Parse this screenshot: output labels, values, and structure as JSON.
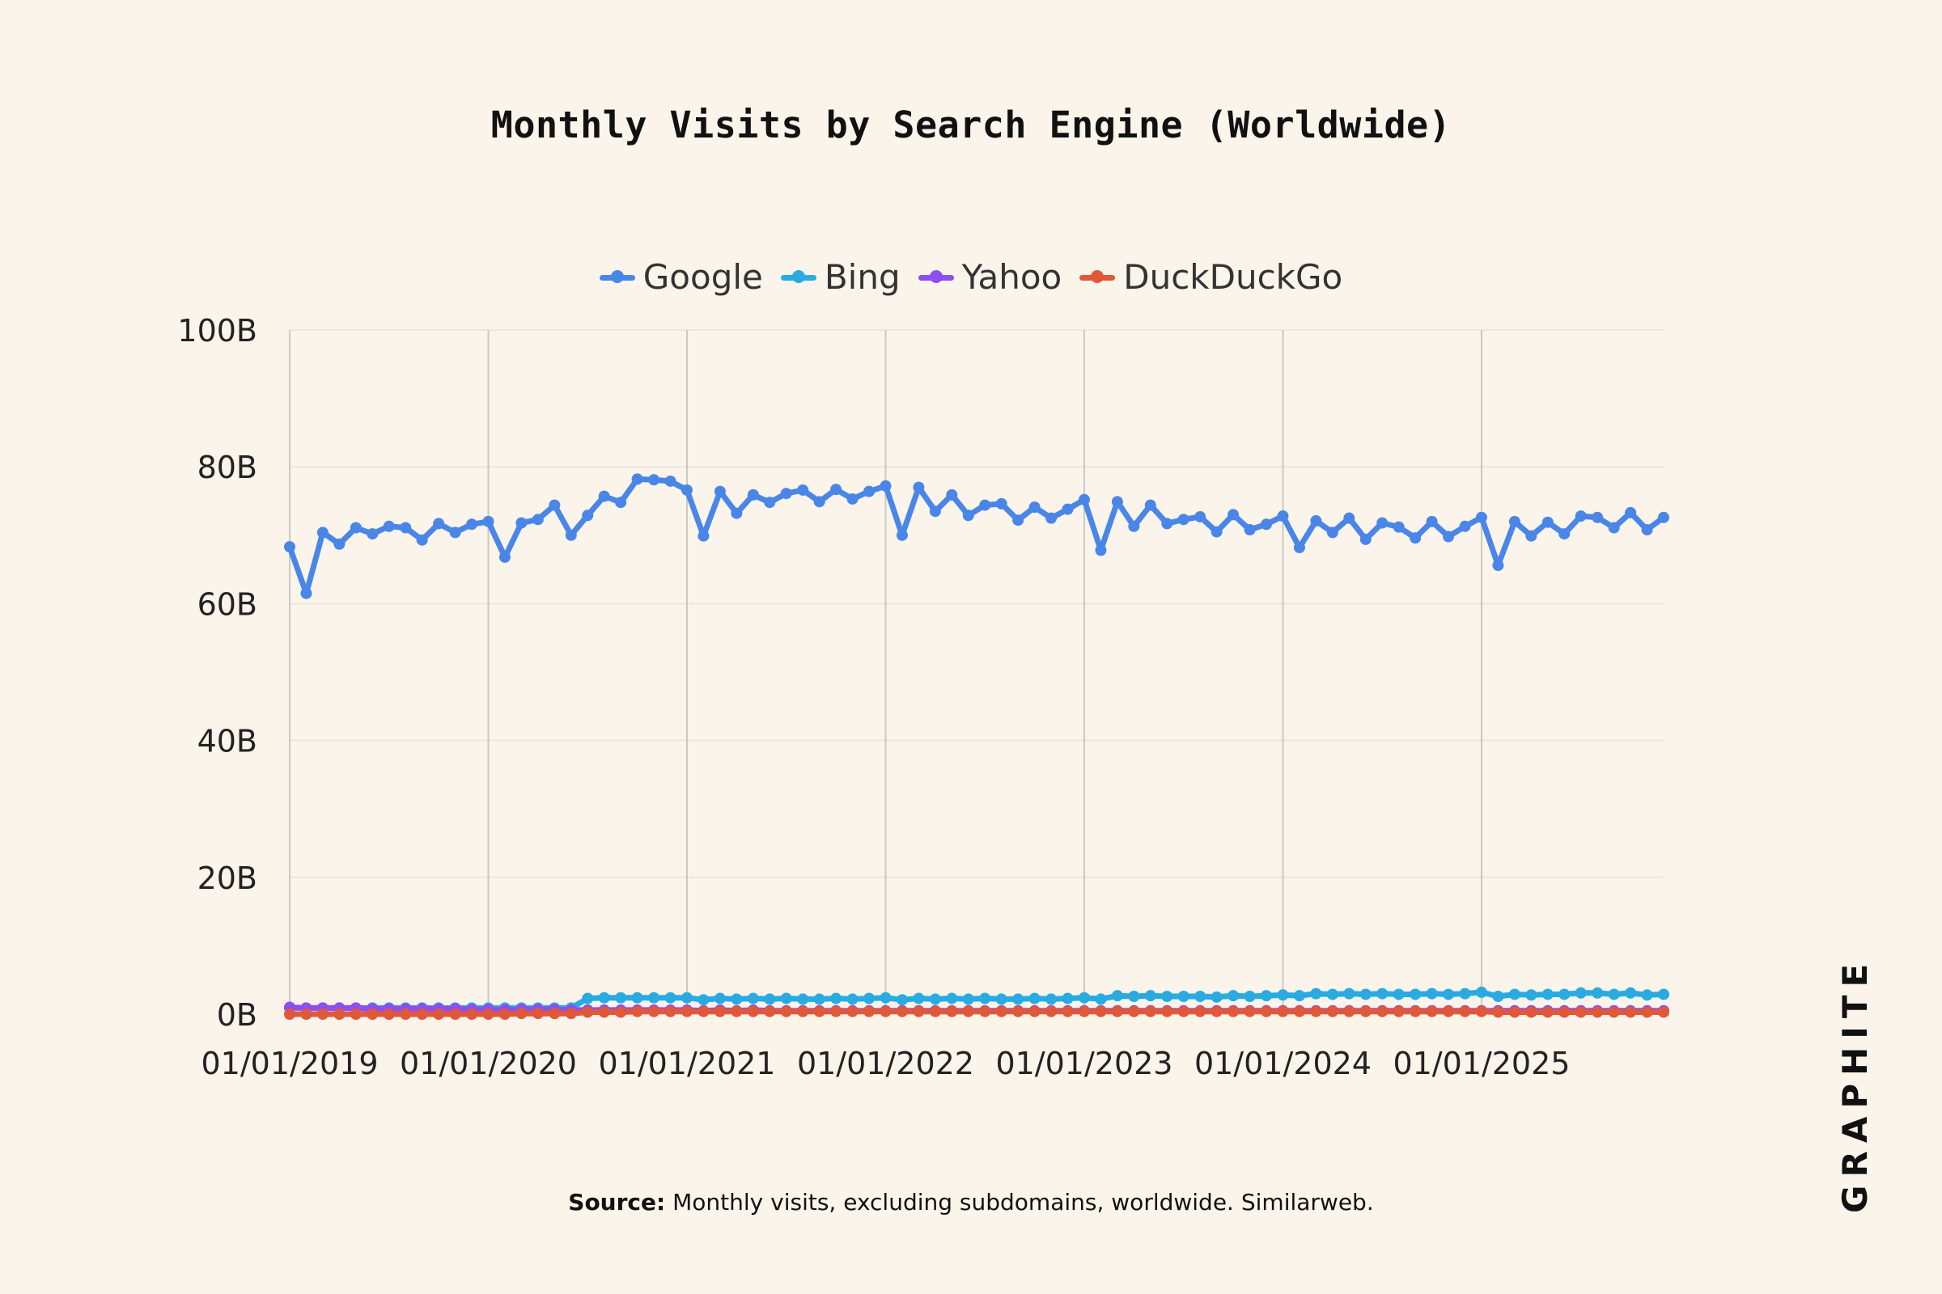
{
  "title": "Monthly Visits by Search Engine (Worldwide)",
  "source": {
    "label": "Source:",
    "text": "Monthly visits, excluding subdomains, worldwide. Similarweb."
  },
  "brand": "GRAPHITE",
  "chart_data": {
    "type": "line",
    "title": "Monthly Visits by Search Engine (Worldwide)",
    "xlabel": "",
    "ylabel": "",
    "ylim": [
      0,
      100
    ],
    "yticks": [
      0,
      20,
      40,
      60,
      80,
      100
    ],
    "ytick_labels": [
      "0B",
      "20B",
      "40B",
      "60B",
      "80B",
      "100B"
    ],
    "xtick_labels": [
      "01/01/2019",
      "01/01/2020",
      "01/01/2021",
      "01/01/2022",
      "01/01/2023",
      "01/01/2024",
      "01/01/2025"
    ],
    "x_start": "2019-01",
    "x_end": "2025-12",
    "grid": "vertical at year starts, faint horizontal",
    "legend_position": "top-center",
    "series": [
      {
        "name": "Google",
        "color": "#4A86E8",
        "values": [
          68.3,
          61.5,
          70.4,
          68.7,
          71.1,
          70.2,
          71.3,
          71.1,
          69.3,
          71.7,
          70.4,
          71.6,
          72.0,
          66.8,
          71.8,
          72.3,
          74.4,
          70.0,
          72.9,
          75.7,
          74.8,
          78.2,
          78.1,
          77.9,
          76.6,
          69.9,
          76.4,
          73.2,
          75.9,
          74.8,
          76.1,
          76.6,
          74.9,
          76.7,
          75.3,
          76.4,
          77.2,
          70.0,
          77.0,
          73.5,
          75.9,
          72.9,
          74.4,
          74.6,
          72.2,
          74.1,
          72.5,
          73.8,
          75.2,
          67.8,
          74.9,
          71.3,
          74.4,
          71.7,
          72.3,
          72.7,
          70.5,
          73.0,
          70.8,
          71.6,
          72.8,
          68.2,
          72.1,
          70.4,
          72.5,
          69.4,
          71.8,
          71.2,
          69.6,
          72.0,
          69.8,
          71.3,
          72.6,
          65.6,
          72.0,
          69.9,
          71.9,
          70.2,
          72.8,
          72.6,
          71.1,
          73.3,
          70.8,
          72.6
        ]
      },
      {
        "name": "Bing",
        "color": "#29ABE2",
        "values": [
          0.9,
          0.9,
          0.9,
          0.9,
          0.9,
          0.9,
          0.9,
          0.9,
          0.9,
          0.9,
          0.9,
          0.9,
          0.9,
          0.9,
          0.9,
          0.9,
          0.9,
          0.9,
          2.3,
          2.4,
          2.4,
          2.4,
          2.4,
          2.4,
          2.4,
          2.1,
          2.3,
          2.2,
          2.3,
          2.2,
          2.3,
          2.2,
          2.2,
          2.3,
          2.2,
          2.3,
          2.4,
          2.1,
          2.3,
          2.2,
          2.3,
          2.2,
          2.3,
          2.2,
          2.2,
          2.3,
          2.2,
          2.3,
          2.4,
          2.2,
          2.7,
          2.6,
          2.7,
          2.6,
          2.6,
          2.6,
          2.5,
          2.7,
          2.6,
          2.7,
          2.8,
          2.7,
          3.0,
          2.9,
          3.0,
          2.9,
          3.0,
          2.9,
          2.9,
          3.0,
          2.9,
          3.0,
          3.2,
          2.6,
          2.9,
          2.8,
          2.9,
          2.9,
          3.1,
          3.1,
          2.9,
          3.1,
          2.8,
          2.9
        ]
      },
      {
        "name": "Yahoo",
        "color": "#8E4EF0",
        "values": [
          1.0,
          0.9,
          0.9,
          0.9,
          0.9,
          0.8,
          0.8,
          0.8,
          0.8,
          0.8,
          0.8,
          0.7,
          0.7,
          0.6,
          0.7,
          0.7,
          0.7,
          0.6,
          0.6,
          0.6,
          0.6,
          0.6,
          0.6,
          0.6,
          0.6,
          0.5,
          0.6,
          0.5,
          0.6,
          0.5,
          0.5,
          0.5,
          0.5,
          0.5,
          0.5,
          0.5,
          0.5,
          0.5,
          0.5,
          0.5,
          0.5,
          0.5,
          0.5,
          0.5,
          0.5,
          0.5,
          0.5,
          0.5,
          0.5,
          0.5,
          0.5,
          0.5,
          0.5,
          0.5,
          0.5,
          0.5,
          0.5,
          0.5,
          0.5,
          0.5,
          0.5,
          0.5,
          0.5,
          0.5,
          0.5,
          0.5,
          0.5,
          0.5,
          0.5,
          0.5,
          0.5,
          0.5,
          0.5,
          0.5,
          0.5,
          0.5,
          0.5,
          0.5,
          0.5,
          0.5,
          0.5,
          0.5,
          0.5,
          0.5
        ]
      },
      {
        "name": "DuckDuckGo",
        "color": "#E0583A",
        "values": [
          0.0,
          0.0,
          0.0,
          0.0,
          0.0,
          0.0,
          0.0,
          0.0,
          0.0,
          0.0,
          0.0,
          0.0,
          0.0,
          0.0,
          0.1,
          0.1,
          0.1,
          0.1,
          0.3,
          0.3,
          0.3,
          0.4,
          0.4,
          0.4,
          0.4,
          0.4,
          0.4,
          0.4,
          0.4,
          0.4,
          0.4,
          0.4,
          0.4,
          0.4,
          0.4,
          0.4,
          0.4,
          0.4,
          0.4,
          0.4,
          0.4,
          0.4,
          0.4,
          0.4,
          0.4,
          0.4,
          0.4,
          0.4,
          0.4,
          0.4,
          0.4,
          0.4,
          0.4,
          0.4,
          0.4,
          0.4,
          0.4,
          0.4,
          0.4,
          0.4,
          0.4,
          0.4,
          0.4,
          0.4,
          0.4,
          0.4,
          0.4,
          0.4,
          0.4,
          0.4,
          0.4,
          0.4,
          0.4,
          0.3,
          0.3,
          0.3,
          0.3,
          0.3,
          0.3,
          0.3,
          0.3,
          0.3,
          0.3,
          0.3
        ]
      }
    ]
  }
}
